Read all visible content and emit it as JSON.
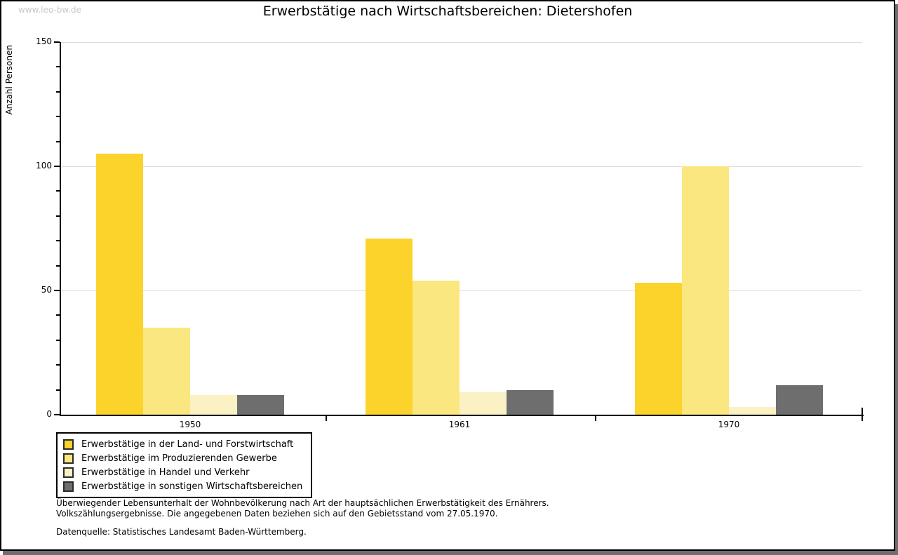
{
  "watermark": "www.leo-bw.de",
  "header": {
    "title": "Erwerbstätige nach Wirtschaftsbereichen: Dietershofen"
  },
  "chart_data": {
    "type": "bar",
    "title": "Erwerbstätige nach Wirtschaftsbereichen: Dietershofen",
    "xlabel": "",
    "ylabel": "Anzahl Personen",
    "ylim": [
      0,
      150
    ],
    "yticks_major": [
      0,
      50,
      100,
      150
    ],
    "ytick_minor_step": 10,
    "grid": true,
    "legend_position": "bottom-left",
    "categories": [
      "1950",
      "1961",
      "1970"
    ],
    "series": [
      {
        "name": "Erwerbstätige in der Land- und Forstwirtschaft",
        "color": "#FBD32B",
        "values": [
          105,
          71,
          53
        ]
      },
      {
        "name": "Erwerbstätige im Produzierenden Gewerbe",
        "color": "#FAE77F",
        "values": [
          35,
          54,
          100
        ]
      },
      {
        "name": "Erwerbstätige in Handel und Verkehr",
        "color": "#FAF1C4",
        "values": [
          8,
          9,
          3
        ]
      },
      {
        "name": "Erwerbstätige in sonstigen Wirtschaftsbereichen",
        "color": "#6E6E6E",
        "values": [
          8,
          10,
          12
        ]
      }
    ]
  },
  "footnotes": {
    "line1": "Überwiegender Lebensunterhalt der Wohnbevölkerung nach Art der hauptsächlichen Erwerbstätigkeit des Ernährers.",
    "line2": "Volkszählungsergebnisse. Die angegebenen Daten beziehen sich auf den Gebietsstand vom 27.05.1970."
  },
  "source": "Datenquelle: Statistisches Landesamt Baden-Württemberg.",
  "colors": {
    "axis": "#000000",
    "grid": "#DCDCDC",
    "watermark": "#C8C8C8",
    "frame_shadow": "#6E6E6E"
  }
}
